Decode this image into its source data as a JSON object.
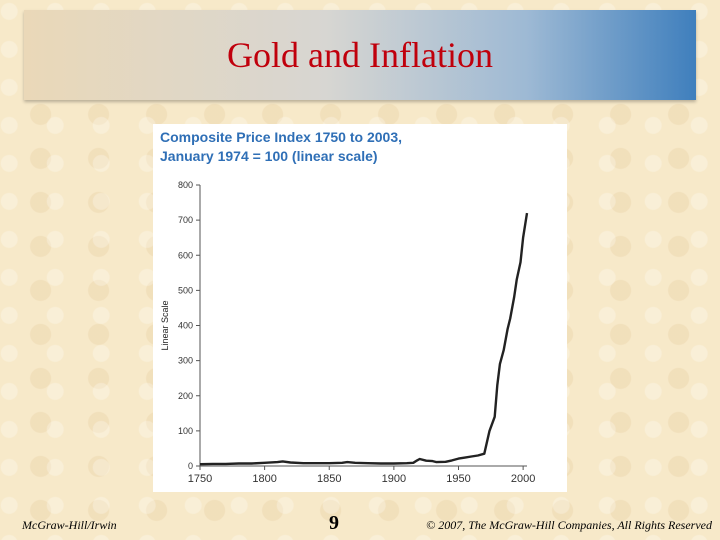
{
  "slide": {
    "title": "Gold and Inflation",
    "footer_left": "McGraw-Hill/Irwin",
    "page_number": "9",
    "footer_right": "© 2007, The McGraw-Hill Companies, All Rights Reserved"
  },
  "colors": {
    "title": "#c0000c",
    "chart_title": "#2f6fb6",
    "series": "#222222"
  },
  "chart_data": {
    "type": "line",
    "title_lines": [
      "Composite Price Index 1750 to 2003,",
      "January 1974 = 100 (linear scale)"
    ],
    "xlabel": "",
    "ylabel": "Linear Scale",
    "xlim": [
      1750,
      2003
    ],
    "ylim": [
      0,
      800
    ],
    "x_ticks": [
      1750,
      1800,
      1850,
      1900,
      1950,
      2000
    ],
    "y_ticks": [
      0,
      100,
      200,
      300,
      400,
      500,
      600,
      700,
      800
    ],
    "grid": false,
    "series": [
      {
        "x": [
          1750,
          1760,
          1770,
          1780,
          1790,
          1800,
          1810,
          1814,
          1820,
          1830,
          1840,
          1850,
          1860,
          1864,
          1870,
          1880,
          1890,
          1900,
          1910,
          1915,
          1918,
          1920,
          1925,
          1930,
          1933,
          1940,
          1945,
          1950,
          1955,
          1960,
          1965,
          1970,
          1974,
          1978,
          1980,
          1982,
          1985,
          1988,
          1990,
          1993,
          1995,
          1998,
          2000,
          2003
        ],
        "y": [
          5,
          6,
          6,
          7,
          7,
          9,
          11,
          13,
          10,
          8,
          8,
          8,
          9,
          11,
          9,
          8,
          7,
          7,
          8,
          9,
          16,
          20,
          15,
          14,
          11,
          12,
          16,
          21,
          24,
          27,
          30,
          35,
          100,
          140,
          230,
          290,
          330,
          390,
          420,
          480,
          530,
          580,
          650,
          720
        ]
      }
    ]
  }
}
